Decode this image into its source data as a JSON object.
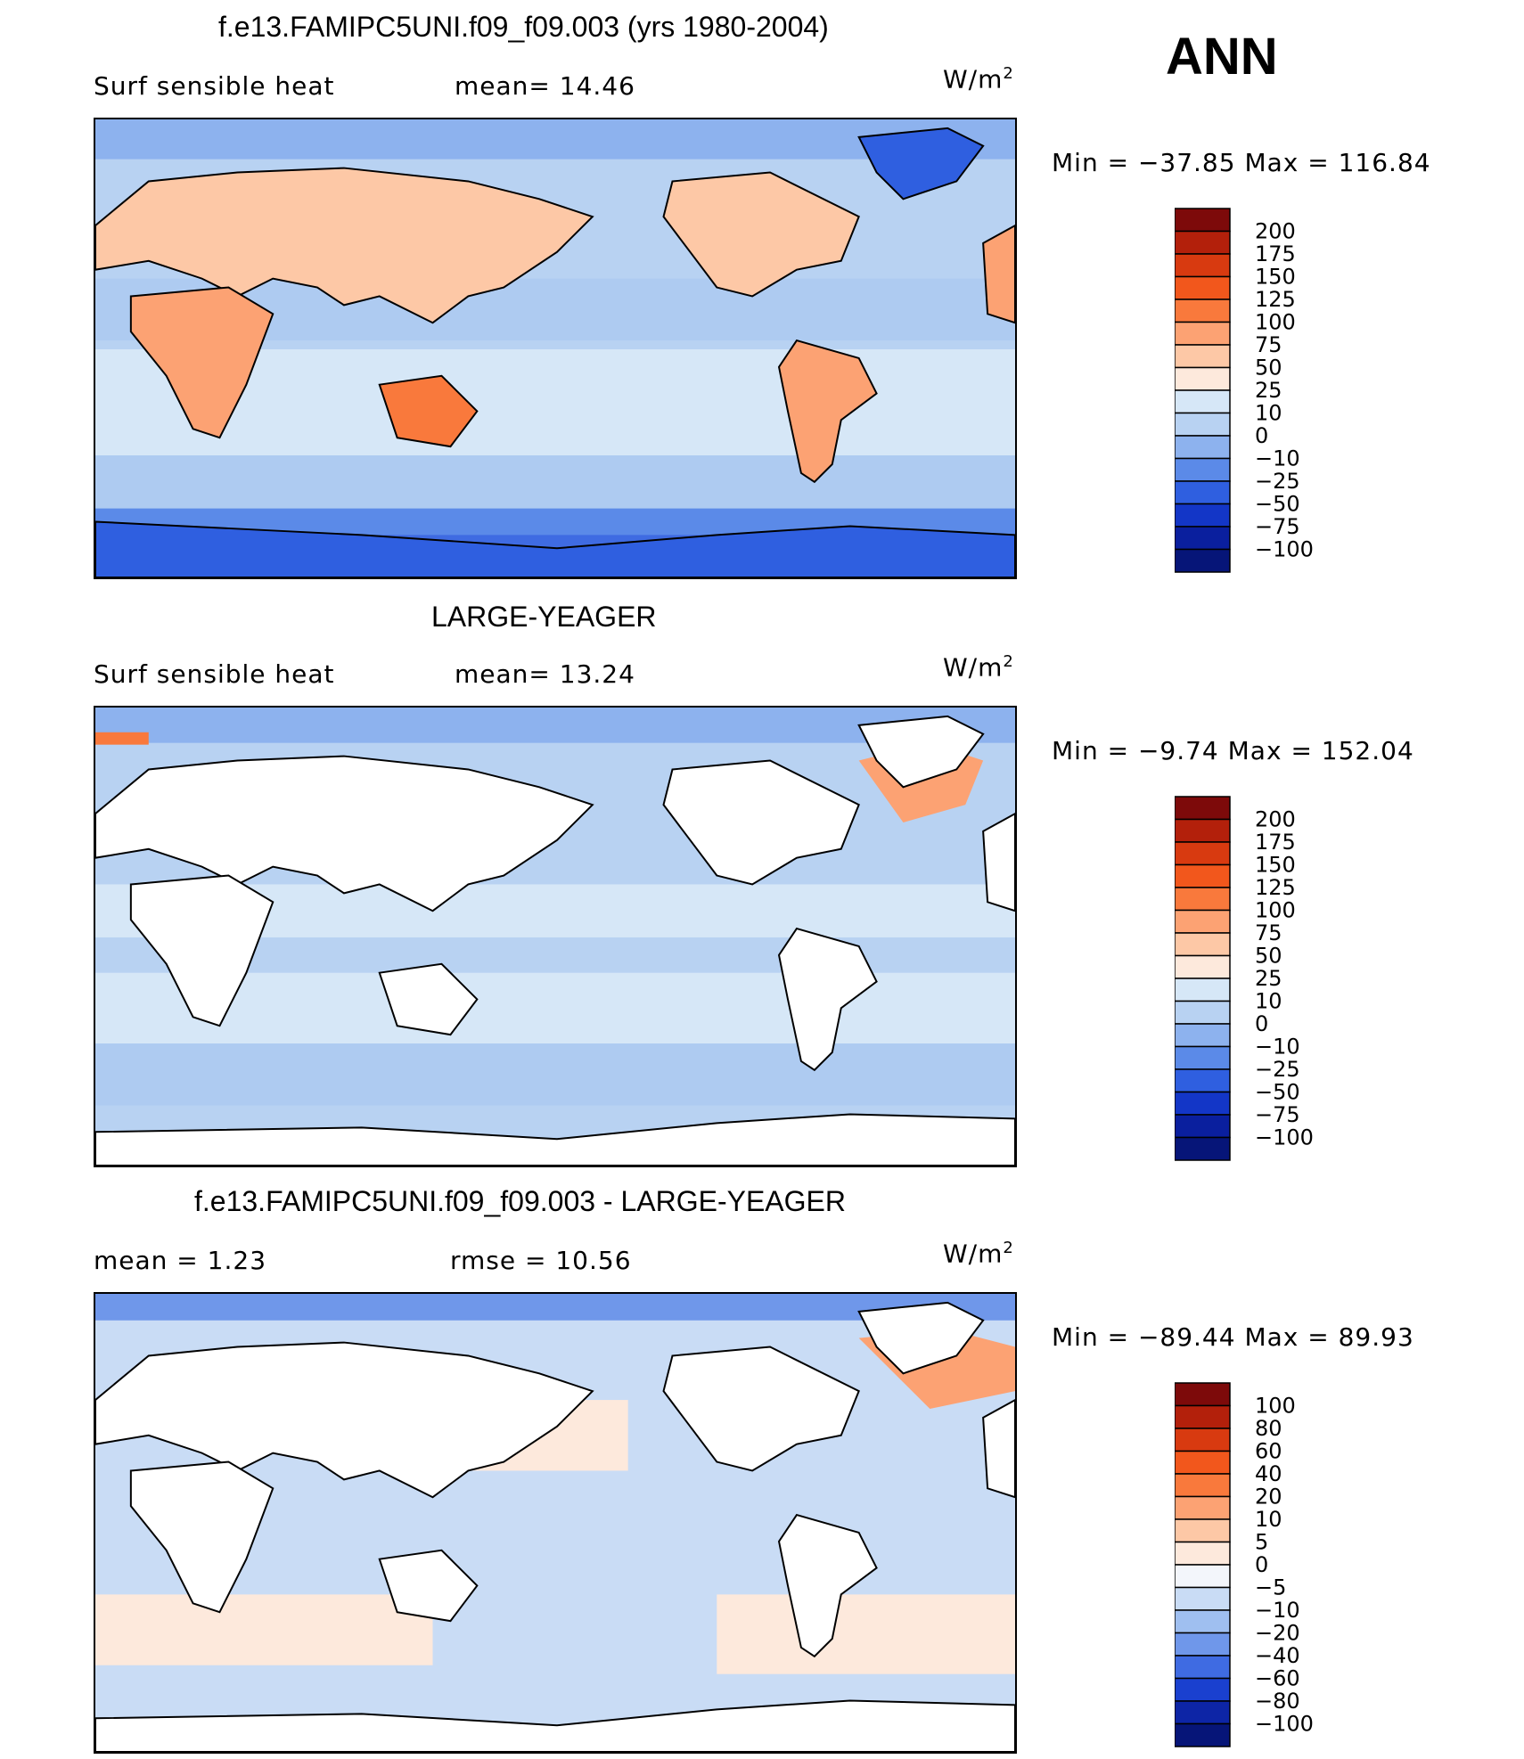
{
  "season": "ANN",
  "panels": [
    {
      "title": "f.e13.FAMIPC5UNI.f09_f09.003 (yrs 1980-2004)",
      "left_label": "Surf  sensible  heat",
      "center_label": "mean=   14.46",
      "units": "W/m",
      "units_sup": "2",
      "minmax": "Min  =  −37.85  Max  =  116.84",
      "colorbar_levels": [
        "200",
        "175",
        "150",
        "125",
        "100",
        "75",
        "50",
        "25",
        "10",
        "0",
        "−10",
        "−25",
        "−50",
        "−75",
        "−100"
      ],
      "colorbar_colors": [
        "#7d0a0a",
        "#b3200b",
        "#d83a10",
        "#f2571c",
        "#f9793c",
        "#fca273",
        "#fdc8a6",
        "#fde9dc",
        "#d6e7f7",
        "#b8d2f2",
        "#8db2ee",
        "#5b8ae8",
        "#2f5fe0",
        "#1336c7",
        "#0a1f9e",
        "#061578"
      ]
    },
    {
      "title": "LARGE-YEAGER",
      "left_label": "Surf  sensible  heat",
      "center_label": "mean=   13.24",
      "units": "W/m",
      "units_sup": "2",
      "minmax": "Min  =    −9.74  Max  =  152.04",
      "colorbar_levels": [
        "200",
        "175",
        "150",
        "125",
        "100",
        "75",
        "50",
        "25",
        "10",
        "0",
        "−10",
        "−25",
        "−50",
        "−75",
        "−100"
      ],
      "colorbar_colors": [
        "#7d0a0a",
        "#b3200b",
        "#d83a10",
        "#f2571c",
        "#f9793c",
        "#fca273",
        "#fdc8a6",
        "#fde9dc",
        "#d6e7f7",
        "#b8d2f2",
        "#8db2ee",
        "#5b8ae8",
        "#2f5fe0",
        "#1336c7",
        "#0a1f9e",
        "#061578"
      ]
    },
    {
      "title": "f.e13.FAMIPC5UNI.f09_f09.003 - LARGE-YEAGER",
      "left_label": "mean  =     1.23",
      "center_label": "rmse  =    10.56",
      "units": "W/m",
      "units_sup": "2",
      "minmax": "Min  =  −89.44  Max  =    89.93",
      "colorbar_levels": [
        "100",
        "80",
        "60",
        "40",
        "20",
        "10",
        "5",
        "0",
        "−5",
        "−10",
        "−20",
        "−40",
        "−60",
        "−80",
        "−100"
      ],
      "colorbar_colors": [
        "#7d0a0a",
        "#b3200b",
        "#d83a10",
        "#f2571c",
        "#f9793c",
        "#fca273",
        "#fdc8a6",
        "#fde9dc",
        "#f3f6fb",
        "#c9dcf5",
        "#9fbff0",
        "#6f97ea",
        "#3f6be2",
        "#1a40cf",
        "#0d25a6",
        "#061578"
      ]
    }
  ],
  "chart_data": [
    {
      "type": "heatmap",
      "title": "f.e13.FAMIPC5UNI.f09_f09.003 (yrs 1980-2004)",
      "variable": "Surf  sensible  heat",
      "units": "W/m2",
      "mean": 14.46,
      "min": -37.85,
      "max": 116.84,
      "contour_levels": [
        -100,
        -75,
        -50,
        -25,
        -10,
        0,
        10,
        25,
        50,
        75,
        100,
        125,
        150,
        175,
        200
      ]
    },
    {
      "type": "heatmap",
      "title": "LARGE-YEAGER",
      "variable": "Surf  sensible  heat",
      "units": "W/m2",
      "mean": 13.24,
      "min": -9.74,
      "max": 152.04,
      "contour_levels": [
        -100,
        -75,
        -50,
        -25,
        -10,
        0,
        10,
        25,
        50,
        75,
        100,
        125,
        150,
        175,
        200
      ]
    },
    {
      "type": "heatmap",
      "title": "f.e13.FAMIPC5UNI.f09_f09.003 - LARGE-YEAGER",
      "units": "W/m2",
      "mean": 1.23,
      "rmse": 10.56,
      "min": -89.44,
      "max": 89.93,
      "contour_levels": [
        -100,
        -80,
        -60,
        -40,
        -20,
        -10,
        -5,
        0,
        5,
        10,
        20,
        40,
        60,
        80,
        100
      ]
    }
  ]
}
